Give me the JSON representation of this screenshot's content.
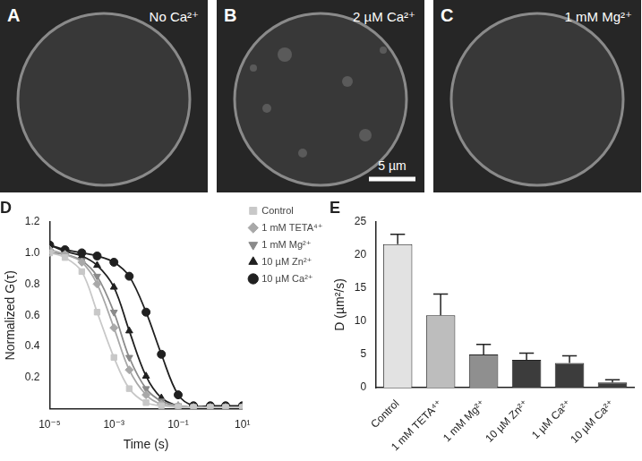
{
  "images": [
    {
      "panel": "A",
      "label": "No Ca²⁺"
    },
    {
      "panel": "B",
      "label": "2 µM Ca²⁺",
      "scale_bar": "5 µm"
    },
    {
      "panel": "C",
      "label": "1 mM Mg²⁺"
    }
  ],
  "chart_data": [
    {
      "type": "line",
      "title": "D",
      "xlabel": "Time (s)",
      "ylabel": "Normalized G(τ)",
      "log": "x",
      "grid": false,
      "legend": "right",
      "xlim": [
        1e-05,
        10
      ],
      "xticks": [
        {
          "value": 1e-05,
          "label": "10⁻⁵"
        },
        {
          "value": 0.001,
          "label": "10⁻³"
        },
        {
          "value": 0.1,
          "label": "10⁻¹"
        },
        {
          "value": 10,
          "label": "10¹"
        }
      ],
      "ylim": [
        0,
        1.2
      ],
      "yticks": [
        0.2,
        0.4,
        0.6,
        0.8,
        {
          "value": 1,
          "label": "1.0"
        },
        1.2
      ],
      "x": [
        1e-05,
        3e-05,
        0.0001,
        0.0003,
        0.001,
        0.003,
        0.01,
        0.03,
        0.1,
        0.3,
        1,
        3,
        10
      ],
      "series": [
        {
          "name": "Control",
          "color": "#c8c8c8",
          "marker": "square",
          "line_style": "solid",
          "values": [
            1.0,
            0.97,
            0.88,
            0.62,
            0.33,
            0.13,
            0.04,
            0.02,
            0.01,
            0.01,
            0.01,
            0.01,
            0.01
          ]
        },
        {
          "name": "1 mM TETA⁴⁺",
          "color": "#a8a8a8",
          "marker": "diamond",
          "line_style": "solid",
          "values": [
            1.02,
            0.99,
            0.94,
            0.8,
            0.52,
            0.25,
            0.09,
            0.03,
            0.02,
            0.01,
            0.01,
            0.01,
            0.01
          ]
        },
        {
          "name": "1 mM Mg²⁺",
          "color": "#8a8a8a",
          "marker": "triangle-down",
          "line_style": "solid",
          "values": [
            1.0,
            0.99,
            0.95,
            0.85,
            0.62,
            0.33,
            0.13,
            0.05,
            0.02,
            0.01,
            0.01,
            0.01,
            0.01
          ]
        },
        {
          "name": "10 µM Zn²⁺",
          "color": "#202020",
          "marker": "triangle",
          "line_style": "solid",
          "values": [
            1.05,
            1.01,
            0.98,
            0.92,
            0.78,
            0.5,
            0.21,
            0.07,
            0.02,
            0.01,
            0.01,
            0.01,
            0.01
          ]
        },
        {
          "name": "10 µM Ca²⁺",
          "color": "#202020",
          "marker": "circle",
          "line_style": "solid",
          "values": [
            1.05,
            1.02,
            1.0,
            0.98,
            0.94,
            0.85,
            0.62,
            0.35,
            0.09,
            0.02,
            0.02,
            0.02,
            0.02
          ]
        }
      ]
    },
    {
      "type": "bar",
      "title": "E",
      "ylabel": "D (µm²/s)",
      "grid": false,
      "categories": [
        "Control",
        "1 mM TETA⁴⁺",
        "1 mM Mg²⁺",
        "10 µM Zn²⁺",
        "1 µM Ca²⁺",
        "10 µM Ca²⁺"
      ],
      "values": [
        21.6,
        10.9,
        5.0,
        4.2,
        3.7,
        0.8
      ],
      "errors": [
        1.5,
        3.2,
        1.5,
        1.0,
        1.1,
        0.4
      ],
      "colors": [
        "#e2e2e2",
        "#bdbdbd",
        "#8f8f8f",
        "#3c3c3c",
        "#3c3c3c",
        "#3c3c3c"
      ],
      "ylim": [
        0,
        25
      ],
      "yticks": [
        0,
        5,
        10,
        15,
        20,
        25
      ]
    }
  ]
}
